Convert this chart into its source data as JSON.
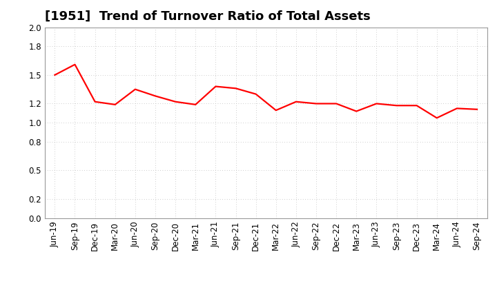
{
  "title": "[1951]  Trend of Turnover Ratio of Total Assets",
  "labels": [
    "Jun-19",
    "Sep-19",
    "Dec-19",
    "Mar-20",
    "Jun-20",
    "Sep-20",
    "Dec-20",
    "Mar-21",
    "Jun-21",
    "Sep-21",
    "Dec-21",
    "Mar-22",
    "Jun-22",
    "Sep-22",
    "Dec-22",
    "Mar-23",
    "Jun-23",
    "Sep-23",
    "Dec-23",
    "Mar-24",
    "Jun-24",
    "Sep-24"
  ],
  "values": [
    1.5,
    1.61,
    1.22,
    1.19,
    1.35,
    1.28,
    1.22,
    1.19,
    1.38,
    1.36,
    1.3,
    1.13,
    1.22,
    1.2,
    1.2,
    1.12,
    1.2,
    1.18,
    1.18,
    1.05,
    1.15,
    1.14
  ],
  "line_color": "#FF0000",
  "line_width": 1.6,
  "ylim": [
    0.0,
    2.0
  ],
  "yticks": [
    0.0,
    0.2,
    0.5,
    0.8,
    1.0,
    1.2,
    1.5,
    1.8,
    2.0
  ],
  "background_color": "#FFFFFF",
  "plot_bg_color": "#FFFFFF",
  "grid_color": "#BBBBBB",
  "title_fontsize": 13,
  "tick_fontsize": 8.5
}
